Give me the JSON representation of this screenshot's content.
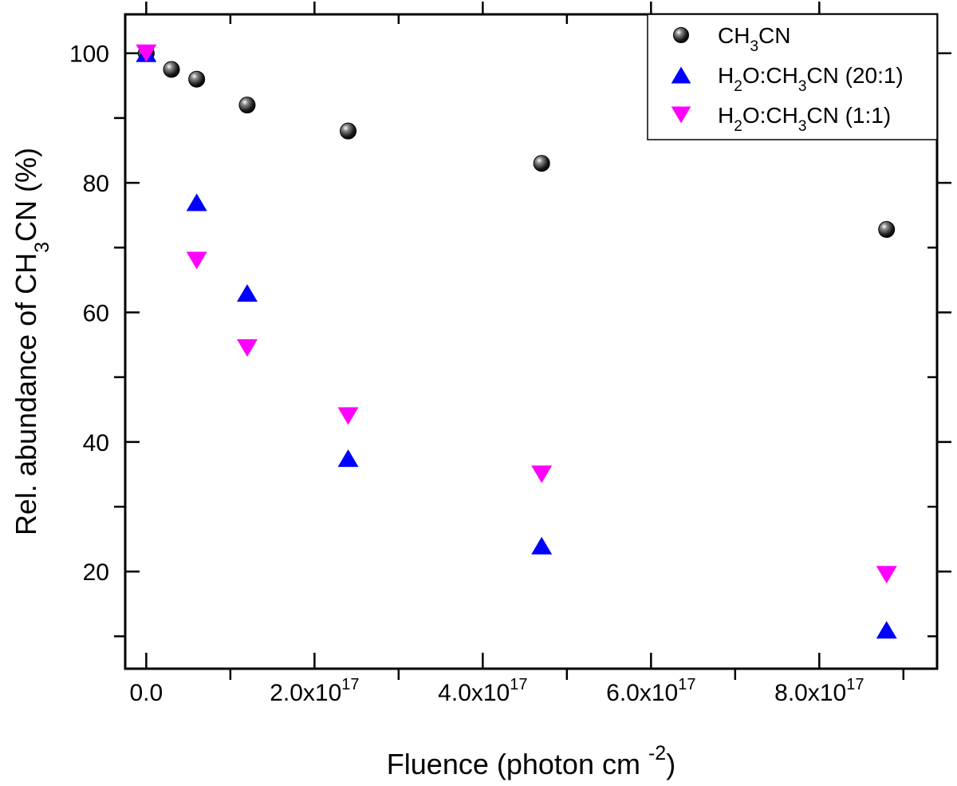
{
  "chart_data": {
    "type": "scatter",
    "title": "",
    "xlabel": "Fluence (photon cm ",
    "xlabel_sup": "-2",
    "xlabel_close": ")",
    "ylabel": "Rel. abundance of CH",
    "ylabel_sub": "3",
    "ylabel_end": "CN (%)",
    "xlim": [
      -2.5e+16,
      9.4e+17
    ],
    "ylim": [
      5,
      106
    ],
    "x_ticks": [
      {
        "value": 0,
        "label": "0.0",
        "exp": ""
      },
      {
        "value": 2e+17,
        "label": "2.0x10",
        "exp": "17"
      },
      {
        "value": 4e+17,
        "label": "4.0x10",
        "exp": "17"
      },
      {
        "value": 6e+17,
        "label": "6.0x10",
        "exp": "17"
      },
      {
        "value": 8e+17,
        "label": "8.0x10",
        "exp": "17"
      }
    ],
    "y_ticks": [
      {
        "value": 20,
        "label": "20"
      },
      {
        "value": 40,
        "label": "40"
      },
      {
        "value": 60,
        "label": "60"
      },
      {
        "value": 80,
        "label": "80"
      },
      {
        "value": 100,
        "label": "100"
      }
    ],
    "grid": false,
    "legend_position": "top-right",
    "series": [
      {
        "name": "CH3CN",
        "legend_parts": [
          [
            "CH",
            ""
          ],
          [
            "3",
            "sub"
          ],
          [
            "CN",
            ""
          ]
        ],
        "marker": "sphere",
        "color": "#000000",
        "points": [
          [
            0,
            100
          ],
          [
            3e+16,
            97.5
          ],
          [
            6e+16,
            96
          ],
          [
            1.2e+17,
            92
          ],
          [
            2.4e+17,
            88
          ],
          [
            4.7e+17,
            83
          ],
          [
            8.8e+17,
            72.8
          ]
        ]
      },
      {
        "name": "H2O:CH3CN (20:1)",
        "legend_parts": [
          [
            "H",
            ""
          ],
          [
            "2",
            "sub"
          ],
          [
            "O:CH",
            ""
          ],
          [
            "3",
            "sub"
          ],
          [
            "CN (20:1)",
            ""
          ]
        ],
        "marker": "triangle-up",
        "color": "#0000ff",
        "points": [
          [
            0,
            100
          ],
          [
            6e+16,
            77
          ],
          [
            1.2e+17,
            63
          ],
          [
            2.4e+17,
            37.5
          ],
          [
            4.7e+17,
            24
          ],
          [
            8.8e+17,
            11
          ]
        ]
      },
      {
        "name": "H2O:CH3CN (1:1)",
        "legend_parts": [
          [
            "H",
            ""
          ],
          [
            "2",
            "sub"
          ],
          [
            "O:CH",
            ""
          ],
          [
            "3",
            "sub"
          ],
          [
            "CN (1:1)",
            ""
          ]
        ],
        "marker": "triangle-down",
        "color": "#ff00ff",
        "points": [
          [
            0,
            100
          ],
          [
            6e+16,
            68
          ],
          [
            1.2e+17,
            54.5
          ],
          [
            2.4e+17,
            44
          ],
          [
            4.7e+17,
            35
          ],
          [
            8.8e+17,
            19.5
          ]
        ]
      }
    ]
  }
}
